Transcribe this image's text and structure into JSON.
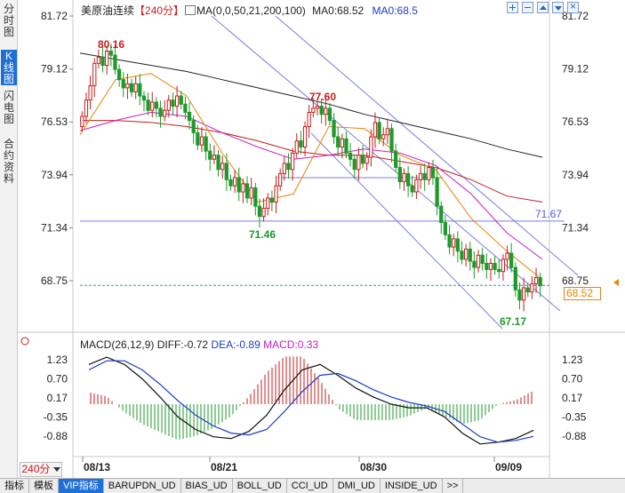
{
  "left_tabs": [
    {
      "label": "分时图",
      "active": false
    },
    {
      "label": "K线图",
      "active": true
    },
    {
      "label": "闪电图",
      "active": false
    },
    {
      "label": "合约资料",
      "active": false
    }
  ],
  "header": {
    "symbol": "美原油连续",
    "period": "【240分】",
    "ma_formula": "MA(0,0,50,21,200,100)",
    "ma_value_1": "MA0:68.52",
    "ma_value_2": "MA0:68.5"
  },
  "tool_icons": [
    "plus-icon",
    "minus-icon",
    "up-icon",
    "down-icon",
    "close-icon"
  ],
  "chart_data": {
    "type": "candlestick",
    "price_axis": {
      "ticks": [
        "81.72",
        "79.12",
        "76.53",
        "73.94",
        "71.34",
        "68.75"
      ],
      "range": [
        66.4,
        81.72
      ]
    },
    "x_ticks": [
      "08/13",
      "08/21",
      "08/30",
      "09/09"
    ],
    "annotations": {
      "high_1": "80.16",
      "high_2": "77.60",
      "low_1": "71.46",
      "low_2": "67.17",
      "hline_label": "71.67"
    },
    "current_price": "68.52",
    "closes": [
      76.8,
      77.6,
      78.3,
      79.4,
      79.7,
      79.3,
      80.0,
      79.8,
      79.1,
      78.6,
      78.2,
      78.4,
      78.0,
      78.4,
      77.8,
      77.6,
      77.1,
      77.5,
      77.2,
      76.8,
      77.1,
      77.6,
      77.3,
      77.8,
      77.4,
      77.0,
      76.6,
      76.0,
      75.4,
      75.8,
      75.1,
      74.7,
      74.9,
      74.2,
      74.5,
      73.7,
      73.4,
      73.8,
      73.1,
      73.5,
      72.8,
      73.3,
      72.4,
      71.9,
      72.3,
      72.8,
      72.6,
      73.4,
      74.0,
      74.5,
      74.2,
      75.0,
      75.6,
      75.3,
      76.3,
      77.0,
      77.2,
      77.3,
      76.9,
      77.2,
      76.6,
      75.8,
      75.3,
      75.7,
      75.0,
      74.7,
      74.2,
      74.9,
      74.5,
      74.8,
      75.8,
      76.5,
      75.7,
      75.9,
      76.2,
      75.1,
      74.3,
      73.6,
      74.0,
      73.4,
      73.1,
      73.7,
      74.0,
      73.7,
      74.3,
      73.8,
      72.4,
      71.6,
      71.0,
      70.4,
      70.8,
      70.2,
      69.8,
      70.3,
      69.7,
      69.4,
      70.0,
      69.6,
      69.3,
      69.6,
      69.3,
      69.2,
      69.8,
      70.1,
      69.4,
      68.3,
      67.8,
      68.4,
      68.2,
      68.6,
      68.9,
      68.5
    ],
    "moving_averages": [
      {
        "color": "#222222",
        "name": "MA0",
        "values": [
          79.9,
          79.6,
          79.3,
          79.0,
          78.6,
          78.2,
          77.8,
          77.4,
          76.9,
          76.5,
          76.1,
          75.7,
          75.2,
          74.8
        ]
      },
      {
        "color": "#c41e1e",
        "name": "MA0",
        "values": [
          76.6,
          76.6,
          76.5,
          76.3,
          76.0,
          75.6,
          75.1,
          74.9,
          74.9,
          74.6,
          74.3,
          73.7,
          72.9,
          72.6
        ]
      },
      {
        "color": "#c41ec4",
        "name": "MA0",
        "values": [
          76.1,
          76.6,
          77.0,
          76.8,
          76.0,
          75.3,
          74.7,
          74.9,
          75.2,
          75.0,
          74.4,
          73.0,
          71.1,
          69.8
        ]
      },
      {
        "color": "#e8850c",
        "name": "MA0",
        "values": [
          75.9,
          78.6,
          78.9,
          77.8,
          75.0,
          72.6,
          73.0,
          76.3,
          76.2,
          74.9,
          74.2,
          71.8,
          70.2,
          68.8
        ]
      }
    ],
    "macd": {
      "label": "MACD(26,12,9)",
      "diff": "DIFF:-0.72",
      "dea": "DEA:-0.89",
      "macd": "MACD:0.33",
      "ticks": [
        "1.23",
        "0.70",
        "0.17",
        "-0.35",
        "-0.88"
      ],
      "range": [
        -1.35,
        1.45
      ],
      "diff_values": [
        1.1,
        1.3,
        1.1,
        0.7,
        0.2,
        -0.35,
        -0.7,
        -0.9,
        -0.95,
        -0.75,
        -0.3,
        0.4,
        0.95,
        1.1,
        0.8,
        0.45,
        0.2,
        0.0,
        -0.1,
        -0.1,
        -0.35,
        -0.8,
        -1.1,
        -1.05,
        -0.95,
        -0.72
      ],
      "dea_values": [
        0.95,
        1.2,
        1.2,
        0.95,
        0.55,
        0.1,
        -0.3,
        -0.6,
        -0.8,
        -0.85,
        -0.7,
        -0.2,
        0.35,
        0.8,
        0.85,
        0.65,
        0.4,
        0.2,
        0.05,
        -0.05,
        -0.2,
        -0.55,
        -0.9,
        -1.05,
        -1.0,
        -0.89
      ]
    }
  },
  "period_button": {
    "label": "240分"
  },
  "bottom_tabs": [
    {
      "label": "指标",
      "active": false
    },
    {
      "label": "模板",
      "active": false
    },
    {
      "label": "VIP指标",
      "active": true
    },
    {
      "label": "BARUPDN_UD",
      "active": false
    },
    {
      "label": "BIAS_UD",
      "active": false
    },
    {
      "label": "BOLL_UD",
      "active": false
    },
    {
      "label": "CCI_UD",
      "active": false
    },
    {
      "label": "DMI_UD",
      "active": false
    },
    {
      "label": "INSIDE_UD",
      "active": false
    },
    {
      "label": ">>",
      "active": false
    }
  ]
}
